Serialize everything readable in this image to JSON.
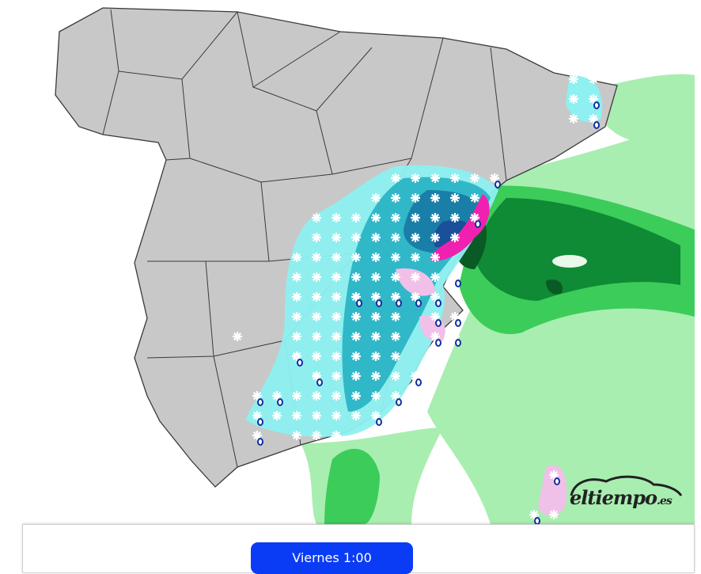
{
  "map": {
    "region": "Spain",
    "layer": "precipitation and snowfall forecast",
    "colors": {
      "land": "#c8c8c8",
      "border": "#3a3a3a",
      "rain_light": "#a8eeb0",
      "rain_moderate": "#3ccc5a",
      "rain_heavy": "#0f8a35",
      "rain_very_heavy": "#0a5a25",
      "snow_light": "#8ef0f0",
      "snow_moderate": "#30b8c8",
      "snow_heavy": "#1a7fa8",
      "snow_very_heavy": "#1a4f9a",
      "sleet": "#f020b0",
      "sleet_light": "#f0c0e8"
    },
    "icons": [
      "snowflake-icon",
      "sleet-icon"
    ]
  },
  "logo": {
    "name": "eltiempo",
    "suffix": ".es"
  },
  "controls": {
    "time_label": "Viernes 1:00",
    "accent": "#0a3cf5"
  }
}
